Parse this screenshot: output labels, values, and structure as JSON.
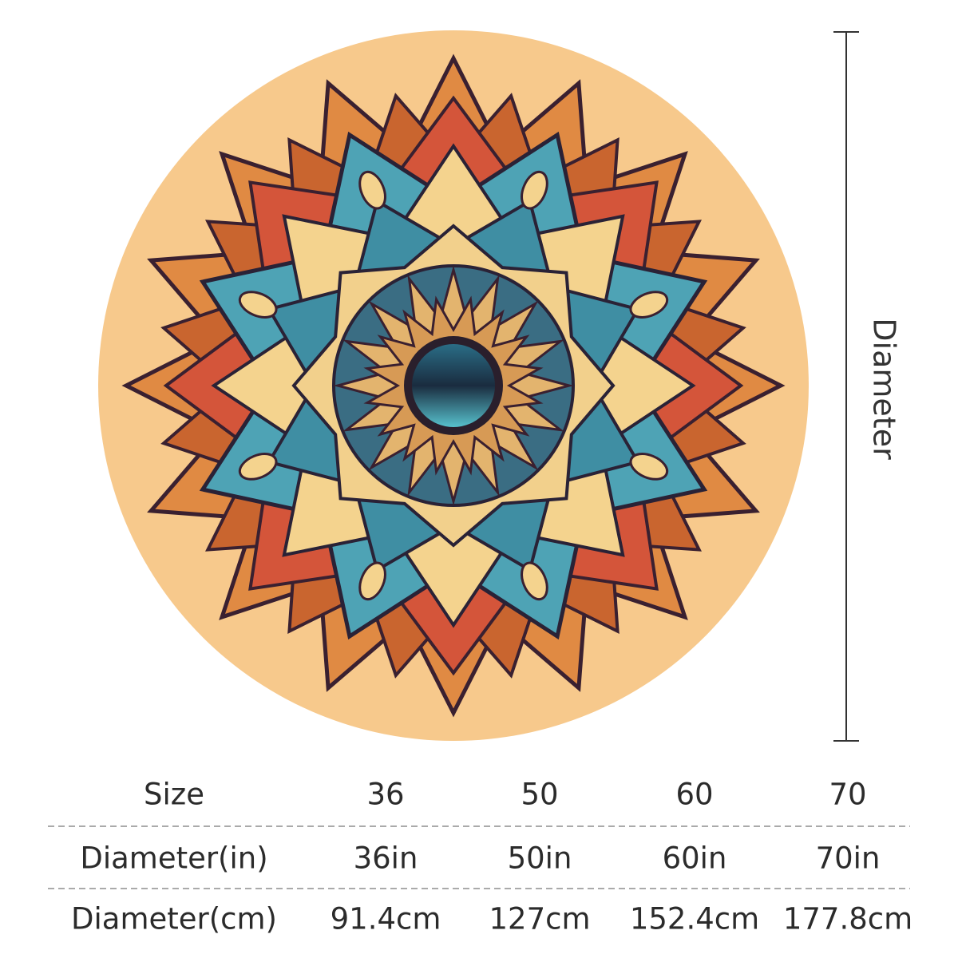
{
  "dimension_label": "Diameter",
  "table": {
    "rows": [
      [
        "Size",
        "36",
        "50",
        "60",
        "70"
      ],
      [
        "Diameter(in)",
        "36in",
        "50in",
        "60in",
        "70in"
      ],
      [
        "Diameter(cm)",
        "91.4cm",
        "127cm",
        "152.4cm",
        "177.8cm"
      ]
    ]
  }
}
